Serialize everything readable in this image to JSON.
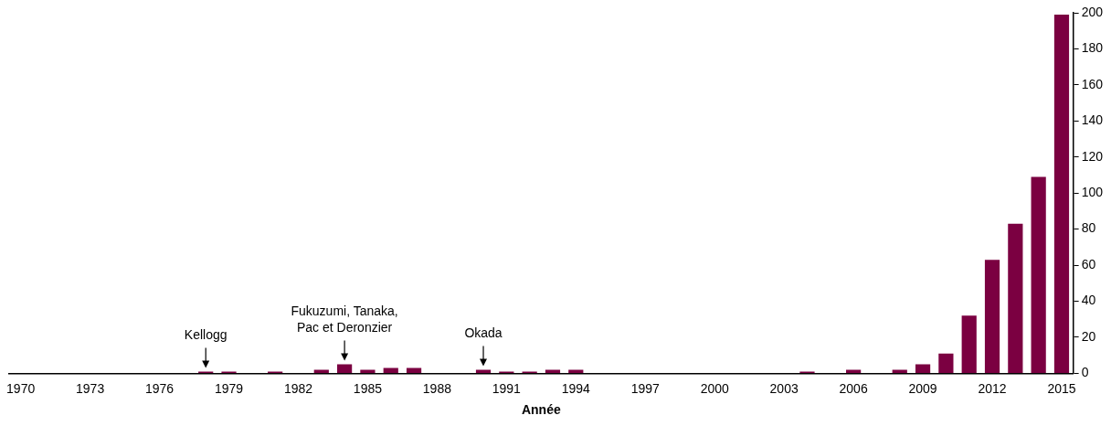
{
  "chart_data": {
    "type": "bar",
    "xlabel": "Année",
    "x": [
      1970,
      1971,
      1972,
      1973,
      1974,
      1975,
      1976,
      1977,
      1978,
      1979,
      1980,
      1981,
      1982,
      1983,
      1984,
      1985,
      1986,
      1987,
      1988,
      1989,
      1990,
      1991,
      1992,
      1993,
      1994,
      1995,
      1996,
      1997,
      1998,
      1999,
      2000,
      2001,
      2002,
      2003,
      2004,
      2005,
      2006,
      2007,
      2008,
      2009,
      2010,
      2011,
      2012,
      2013,
      2014,
      2015
    ],
    "values": [
      0,
      0,
      0,
      0,
      0,
      0,
      0,
      0,
      1,
      1,
      0,
      1,
      0,
      2,
      5,
      2,
      3,
      3,
      0,
      0,
      2,
      1,
      1,
      2,
      2,
      0,
      0,
      0,
      0,
      0,
      0,
      0,
      0,
      0,
      1,
      0,
      2,
      0,
      2,
      5,
      11,
      32,
      63,
      83,
      109,
      199
    ],
    "color": "#7b0041",
    "xlim": [
      1969.5,
      2015.5
    ],
    "xticks": [
      1970,
      1973,
      1976,
      1979,
      1982,
      1985,
      1988,
      1991,
      1994,
      1997,
      2000,
      2003,
      2006,
      2009,
      2012,
      2015
    ],
    "ylim": [
      0,
      200
    ],
    "yticks": [
      0,
      20,
      40,
      60,
      80,
      100,
      120,
      140,
      160,
      180,
      200
    ],
    "grid": false,
    "legend": false,
    "annotations": [
      {
        "text": "Kellogg",
        "x": 1978,
        "y": 1
      },
      {
        "text": "Fukuzumi, Tanaka, Pac et Deronzier",
        "x": 1984,
        "y": 5
      },
      {
        "text": "Okada",
        "x": 1990,
        "y": 2
      }
    ]
  }
}
